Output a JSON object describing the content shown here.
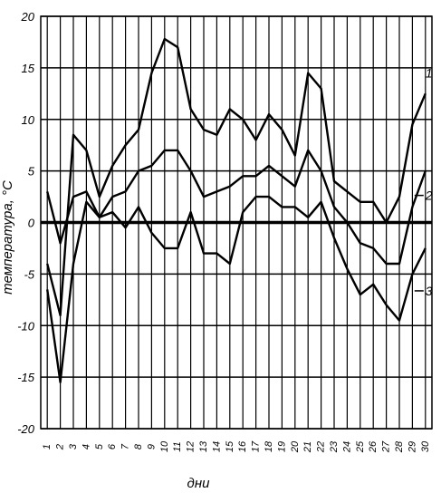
{
  "chart_data": {
    "type": "line",
    "xlabel": "дни",
    "ylabel": "температура, °C",
    "xlim": [
      1,
      30
    ],
    "ylim": [
      -20,
      20
    ],
    "x": [
      1,
      2,
      3,
      4,
      5,
      6,
      7,
      8,
      9,
      10,
      11,
      12,
      13,
      14,
      15,
      16,
      17,
      18,
      19,
      20,
      21,
      22,
      23,
      24,
      25,
      26,
      27,
      28,
      29,
      30
    ],
    "y_ticks": [
      20,
      15,
      10,
      5,
      0,
      -5,
      -10,
      -15,
      -20
    ],
    "y_tick_labels": [
      "20",
      "15",
      "10",
      "5",
      "0",
      "-5",
      "-10",
      "-15",
      "-20"
    ],
    "x_tick_labels": [
      "1",
      "2",
      "3",
      "4",
      "5",
      "6",
      "7",
      "8",
      "9",
      "10",
      "11",
      "12",
      "13",
      "14",
      "15",
      "16",
      "17",
      "18",
      "19",
      "20",
      "21",
      "22",
      "23",
      "24",
      "25",
      "26",
      "27",
      "28",
      "29",
      "30"
    ],
    "grid": true,
    "series": [
      {
        "name": "1",
        "values": [
          -4,
          -9,
          8.5,
          7,
          2.5,
          5.5,
          7.5,
          9,
          14.5,
          17.8,
          17,
          11,
          9,
          8.5,
          11,
          10,
          8,
          10.5,
          9,
          6.5,
          14.5,
          13,
          4,
          3,
          2,
          2,
          0,
          2.5,
          9.5,
          12.5
        ]
      },
      {
        "name": "2",
        "values": [
          3,
          -2,
          2.5,
          3,
          0.5,
          2.5,
          3,
          5,
          5.5,
          7,
          7,
          5,
          2.5,
          3,
          3.5,
          4.5,
          4.5,
          5.5,
          4.5,
          3.5,
          7,
          5,
          1.5,
          0,
          -2,
          -2.5,
          -4,
          -4,
          1.5,
          5
        ]
      },
      {
        "name": "3",
        "values": [
          -6.5,
          -15.5,
          -4,
          2,
          0.5,
          1,
          -0.5,
          1.5,
          -1,
          -2.5,
          -2.5,
          1,
          -3,
          -3,
          -4,
          1,
          2.5,
          2.5,
          1.5,
          1.5,
          0.5,
          2,
          -1.5,
          -4.5,
          -7,
          -6,
          -8,
          -9.5,
          -5,
          -2.5
        ]
      }
    ]
  }
}
